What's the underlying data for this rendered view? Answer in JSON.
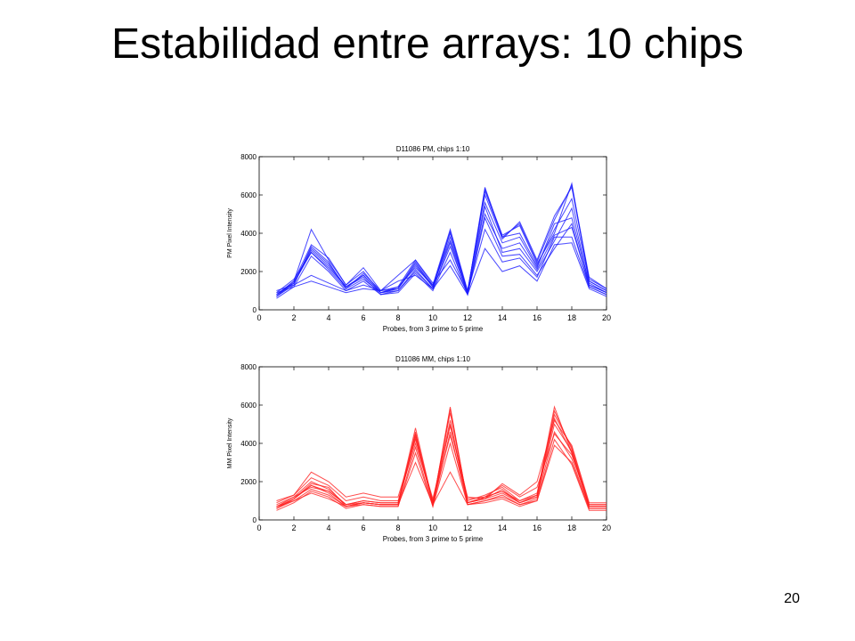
{
  "slide": {
    "title": "Estabilidad entre arrays: 10 chips",
    "page_number": "20"
  },
  "chart_data": [
    {
      "type": "line",
      "title": "D11086 PM, chips 1:10",
      "xlabel": "Probes, from 3 prime to 5 prime",
      "ylabel": "PM Pixel Intensity",
      "xlim": [
        0,
        20
      ],
      "ylim": [
        0,
        8000
      ],
      "xticks": [
        0,
        2,
        4,
        6,
        8,
        10,
        12,
        14,
        16,
        18,
        20
      ],
      "yticks": [
        0,
        2000,
        4000,
        6000,
        8000
      ],
      "color": "#1a1aff",
      "x": [
        1,
        2,
        3,
        4,
        5,
        6,
        7,
        8,
        9,
        10,
        11,
        12,
        13,
        14,
        15,
        16,
        17,
        18,
        19,
        20
      ],
      "series": [
        {
          "values": [
            700,
            1400,
            3200,
            2400,
            1200,
            1800,
            900,
            1100,
            2300,
            1200,
            3800,
            900,
            6300,
            3900,
            4400,
            2400,
            4000,
            6600,
            1500,
            1000
          ]
        },
        {
          "values": [
            800,
            1500,
            4200,
            2600,
            1300,
            2200,
            1000,
            1200,
            2600,
            1300,
            4200,
            1000,
            6000,
            3700,
            4600,
            2600,
            4900,
            6400,
            1600,
            1100
          ]
        },
        {
          "values": [
            900,
            1600,
            3000,
            2200,
            1200,
            1700,
            800,
            1000,
            2100,
            1100,
            3500,
            800,
            5400,
            3000,
            3200,
            2000,
            3600,
            5300,
            1300,
            900
          ]
        },
        {
          "values": [
            600,
            1200,
            2800,
            2000,
            1000,
            1500,
            800,
            900,
            1900,
            1000,
            3000,
            800,
            4800,
            2800,
            2900,
            1800,
            3200,
            4500,
            1200,
            800
          ]
        },
        {
          "values": [
            700,
            1300,
            3300,
            2500,
            1100,
            1900,
            1000,
            1100,
            2400,
            1200,
            4000,
            900,
            6200,
            3800,
            4000,
            2300,
            4200,
            5800,
            1500,
            1000
          ]
        },
        {
          "values": [
            800,
            1400,
            3100,
            2300,
            1200,
            1800,
            900,
            1200,
            2200,
            1300,
            3600,
            1000,
            5600,
            3500,
            3800,
            2200,
            4500,
            4800,
            1400,
            900
          ]
        },
        {
          "values": [
            1000,
            1300,
            1800,
            1400,
            1000,
            1300,
            1000,
            1800,
            2600,
            1400,
            2600,
            900,
            4200,
            2500,
            2700,
            1700,
            3800,
            3800,
            1200,
            800
          ]
        },
        {
          "values": [
            900,
            1200,
            1500,
            1200,
            900,
            1100,
            1000,
            1500,
            1800,
            1100,
            2300,
            800,
            3200,
            2000,
            2300,
            1500,
            3400,
            3500,
            1100,
            700
          ]
        },
        {
          "values": [
            700,
            1500,
            3400,
            2700,
            1300,
            2000,
            900,
            1100,
            2500,
            1200,
            4100,
            900,
            6400,
            3800,
            4500,
            2500,
            4700,
            6500,
            1700,
            1100
          ]
        },
        {
          "values": [
            800,
            1400,
            3000,
            2100,
            1100,
            1600,
            900,
            1000,
            2000,
            1100,
            3300,
            900,
            5000,
            3200,
            3500,
            2100,
            3900,
            4300,
            1300,
            900
          ]
        }
      ]
    },
    {
      "type": "line",
      "title": "D11086 MM, chips 1:10",
      "xlabel": "Probes, from 3 prime to 5 prime",
      "ylabel": "MM Pixel Intensity",
      "xlim": [
        0,
        20
      ],
      "ylim": [
        0,
        8000
      ],
      "xticks": [
        0,
        2,
        4,
        6,
        8,
        10,
        12,
        14,
        16,
        18,
        20
      ],
      "yticks": [
        0,
        2000,
        4000,
        6000,
        8000
      ],
      "color": "#ff2020",
      "x": [
        1,
        2,
        3,
        4,
        5,
        6,
        7,
        8,
        9,
        10,
        11,
        12,
        13,
        14,
        15,
        16,
        17,
        18,
        19,
        20
      ],
      "series": [
        {
          "values": [
            600,
            1100,
            1800,
            1400,
            700,
            900,
            800,
            800,
            4600,
            800,
            5900,
            900,
            1200,
            1500,
            900,
            1300,
            5900,
            3500,
            700,
            700
          ]
        },
        {
          "values": [
            700,
            1200,
            2000,
            1600,
            800,
            1000,
            900,
            900,
            4800,
            900,
            5600,
            1000,
            1300,
            1700,
            1000,
            1400,
            5500,
            3800,
            800,
            800
          ]
        },
        {
          "values": [
            1000,
            1300,
            2500,
            2000,
            1200,
            1400,
            1200,
            1200,
            4200,
            1100,
            4900,
            1200,
            1100,
            1900,
            1300,
            2000,
            5200,
            3900,
            900,
            900
          ]
        },
        {
          "values": [
            500,
            900,
            1500,
            1200,
            600,
            800,
            700,
            700,
            3800,
            700,
            4600,
            800,
            1000,
            1300,
            800,
            1100,
            4600,
            3200,
            600,
            600
          ]
        },
        {
          "values": [
            800,
            1200,
            1700,
            1500,
            800,
            1000,
            900,
            900,
            4400,
            900,
            5200,
            900,
            1200,
            1500,
            1000,
            1300,
            5000,
            3600,
            700,
            700
          ]
        },
        {
          "values": [
            700,
            1000,
            1400,
            1100,
            700,
            900,
            800,
            800,
            3000,
            800,
            2500,
            800,
            1000,
            1200,
            800,
            1000,
            3900,
            3000,
            600,
            600
          ]
        },
        {
          "values": [
            600,
            1100,
            1900,
            1700,
            700,
            900,
            800,
            800,
            4500,
            800,
            5800,
            900,
            1100,
            1600,
            900,
            1200,
            5700,
            3700,
            700,
            700
          ]
        },
        {
          "values": [
            900,
            1300,
            2200,
            1800,
            1000,
            1200,
            1000,
            1000,
            4000,
            1000,
            4400,
            1100,
            1200,
            1800,
            1200,
            1700,
            4500,
            3400,
            800,
            800
          ]
        },
        {
          "values": [
            600,
            1000,
            1600,
            1300,
            700,
            800,
            700,
            700,
            3500,
            700,
            4000,
            800,
            900,
            1100,
            700,
            1000,
            4200,
            2900,
            500,
            500
          ]
        },
        {
          "values": [
            700,
            1100,
            1800,
            1500,
            800,
            900,
            800,
            800,
            4300,
            800,
            5000,
            900,
            1100,
            1400,
            900,
            1200,
            5300,
            3500,
            700,
            700
          ]
        }
      ]
    }
  ]
}
